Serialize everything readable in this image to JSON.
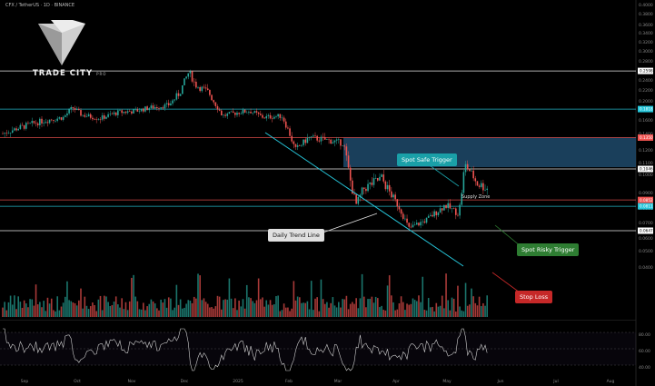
{
  "header": {
    "symbol_line": "CFX / TetherUS · 1D · BINANCE"
  },
  "brand": {
    "name": "TRADE CITY",
    "suffix": "PRO"
  },
  "chart_data": {
    "type": "candlestick",
    "price_axis": {
      "ticks": [
        "0.4000",
        "0.3800",
        "0.3600",
        "0.3400",
        "0.3200",
        "0.3000",
        "0.2800",
        "0.2600",
        "0.2400",
        "0.2200",
        "0.2000",
        "0.1800",
        "0.1600",
        "0.1400",
        "0.1200",
        "0.1100",
        "0.1000",
        "0.0900",
        "0.0800",
        "0.0700",
        "0.0600",
        "0.0500",
        "0.0400"
      ],
      "ylim": [
        0.04,
        0.4
      ]
    },
    "time_axis": {
      "ticks": [
        "Sep",
        "Oct",
        "Nov",
        "Dec",
        "2025",
        "Feb",
        "Mar",
        "Apr",
        "May",
        "Jun",
        "Jul",
        "Aug"
      ]
    },
    "levels": [
      {
        "name": "resistance-top",
        "price_label": "0.2598",
        "color": "#ffffff"
      },
      {
        "name": "resistance-mid",
        "price_label": "0.1818",
        "color": "#26c6da"
      },
      {
        "name": "red-line",
        "price_label": "0.1350",
        "color": "#ef5350"
      },
      {
        "name": "white-line",
        "price_label": "0.1046",
        "color": "#ffffff"
      },
      {
        "name": "current",
        "price_label": "0.0852",
        "color": "#ef5350"
      },
      {
        "name": "support-cyan",
        "price_label": "0.0811",
        "color": "#26c6da"
      },
      {
        "name": "support-bottom",
        "price_label": "0.0647",
        "color": "#ffffff"
      }
    ],
    "annotations": {
      "supply_zone": "Supply Zone",
      "daily_trend_line": "Daily Trend Line",
      "spot_safe_trigger": "Spot Safe Trigger",
      "spot_risky_trigger": "Spot Risky Trigger",
      "stop_loss": "Stop Loss"
    },
    "rsi_axis": {
      "ticks": [
        "80.00",
        "60.00",
        "40.00"
      ]
    }
  },
  "colors": {
    "up": "#26a69a",
    "down": "#ef5350",
    "supply_zone": "#1e4a6b",
    "callout_teal": "#1aa0a8",
    "callout_green": "#2e7d32",
    "callout_red": "#c62828",
    "callout_grey": "#e0e0e0"
  }
}
